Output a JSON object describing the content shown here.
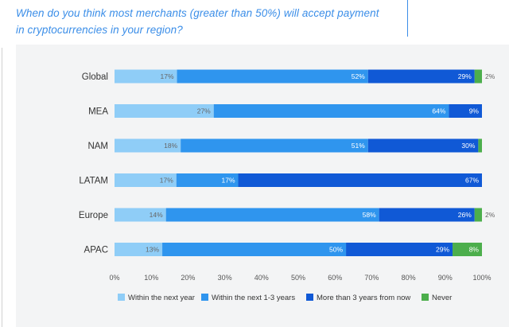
{
  "question": "When do you think most merchants (greater than 50%) will accept payment in cryptocurrencies in your region?",
  "chart_data": {
    "type": "bar",
    "orientation": "horizontal",
    "stacked": true,
    "categories": [
      "Global",
      "MEA",
      "NAM",
      "LATAM",
      "Europe",
      "APAC"
    ],
    "series": [
      {
        "name": "Within the next year",
        "color": "#8fcdf7",
        "values": [
          17,
          27,
          18,
          17,
          14,
          13
        ]
      },
      {
        "name": "Within the next 1-3 years",
        "color": "#2f95ee",
        "values": [
          52,
          64,
          51,
          17,
          58,
          50
        ]
      },
      {
        "name": "More than 3 years from now",
        "color": "#1059d6",
        "values": [
          29,
          9,
          30,
          67,
          26,
          29
        ]
      },
      {
        "name": "Never",
        "color": "#4cae4c",
        "values": [
          2,
          0,
          1,
          0,
          2,
          8
        ]
      }
    ],
    "data_labels": [
      [
        "17%",
        "52%",
        "29%",
        "2%"
      ],
      [
        "27%",
        "64%",
        "9%",
        ""
      ],
      [
        "18%",
        "51%",
        "30%",
        ""
      ],
      [
        "17%",
        "17%",
        "67%",
        ""
      ],
      [
        "14%",
        "58%",
        "26%",
        "2%"
      ],
      [
        "13%",
        "50%",
        "29%",
        "8%"
      ]
    ],
    "xticks": [
      "0%",
      "10%",
      "20%",
      "30%",
      "40%",
      "50%",
      "60%",
      "70%",
      "80%",
      "90%",
      "100%"
    ],
    "xlim": [
      0,
      100
    ],
    "legend_position": "bottom",
    "grid": false
  }
}
